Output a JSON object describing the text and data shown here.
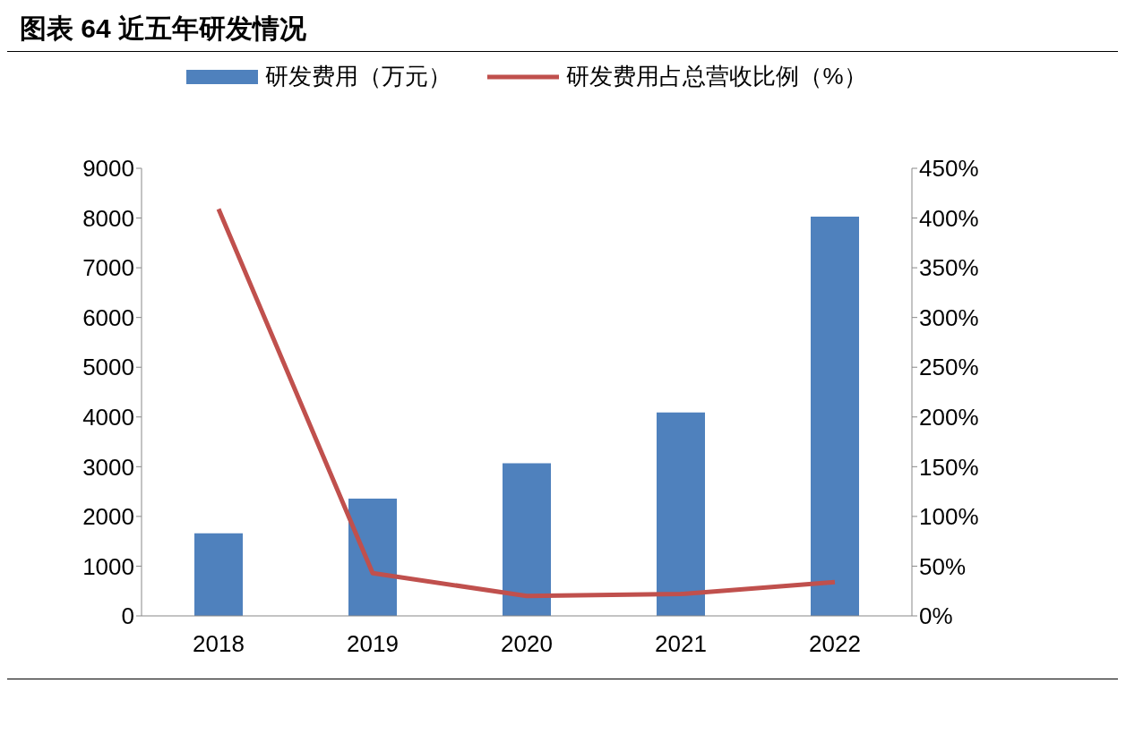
{
  "chart_data": {
    "type": "bar",
    "title": "图表 64 近五年研发情况",
    "categories": [
      "2018",
      "2019",
      "2020",
      "2021",
      "2022"
    ],
    "series": [
      {
        "name": "研发费用（万元）",
        "color": "#4f81bd",
        "values": [
          1660,
          2360,
          3070,
          4090,
          8030
        ]
      },
      {
        "name": "研发费用占总营收比例（%）",
        "type": "line",
        "axis": "y2",
        "color": "#c0504d",
        "values": [
          409,
          43,
          20,
          22,
          34
        ]
      }
    ],
    "ylim": [
      0,
      9000
    ],
    "yticks": [
      0,
      1000,
      2000,
      3000,
      4000,
      5000,
      6000,
      7000,
      8000,
      9000
    ],
    "y2lim": [
      0,
      450
    ],
    "y2ticks": [
      {
        "value": 0,
        "label": "0%"
      },
      {
        "value": 50,
        "label": "50%"
      },
      {
        "value": 100,
        "label": "100%"
      },
      {
        "value": 150,
        "label": "150%"
      },
      {
        "value": 200,
        "label": "200%"
      },
      {
        "value": 250,
        "label": "250%"
      },
      {
        "value": 300,
        "label": "300%"
      },
      {
        "value": 350,
        "label": "350%"
      },
      {
        "value": 400,
        "label": "400%"
      },
      {
        "value": 450,
        "label": "450%"
      }
    ],
    "legend": "top",
    "grid": false,
    "marker": "none",
    "line_style": "solid"
  }
}
